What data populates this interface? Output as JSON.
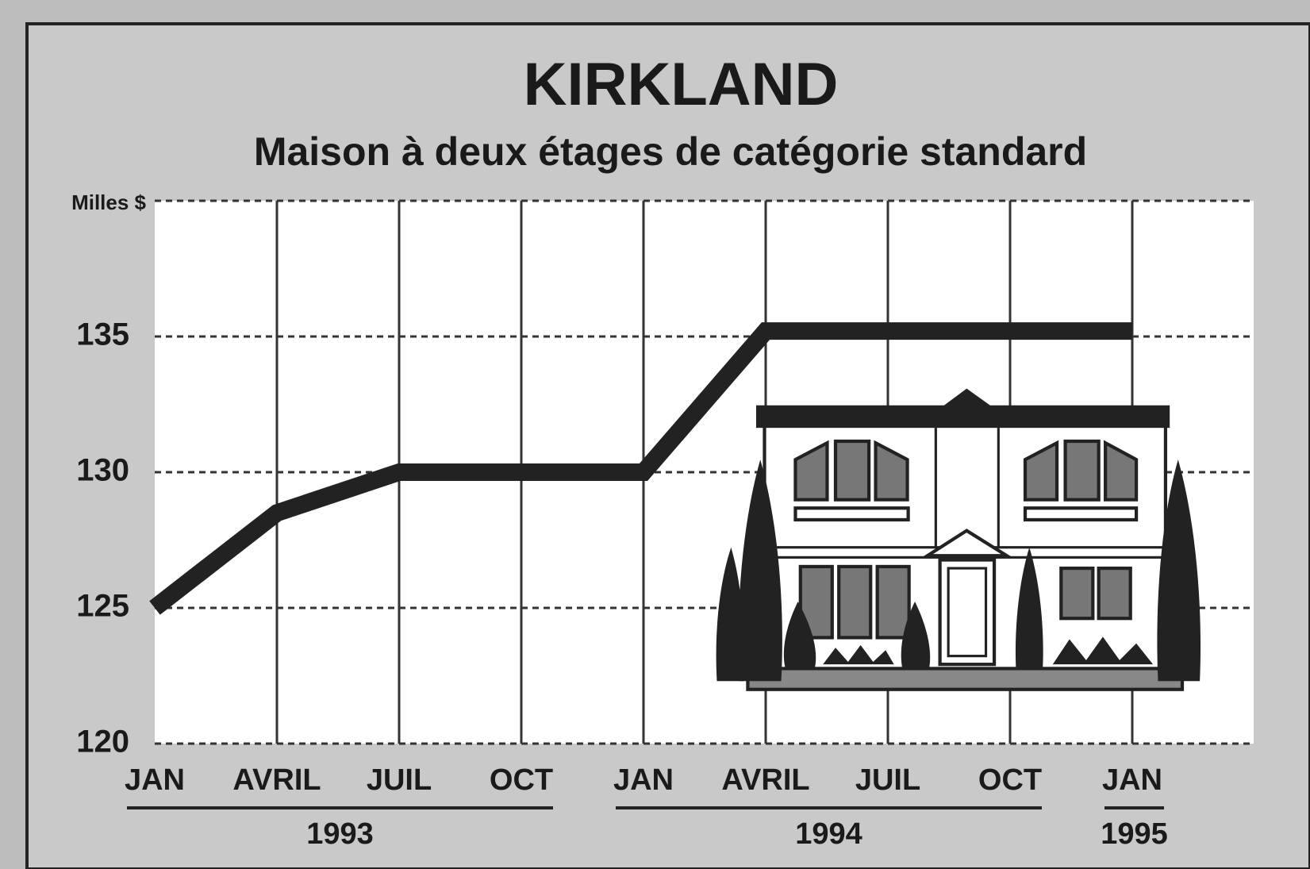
{
  "chart_data": {
    "type": "line",
    "title": "KIRKLAND",
    "subtitle": "Maison à deux étages de catégorie standard",
    "y_label": "Milles $",
    "categories": [
      "JAN",
      "AVRIL",
      "JUIL",
      "OCT",
      "JAN",
      "AVRIL",
      "JUIL",
      "OCT",
      "JAN"
    ],
    "x_groups": [
      {
        "label": "1993",
        "span": 4
      },
      {
        "label": "1994",
        "span": 4
      },
      {
        "label": "1995",
        "span": 1
      }
    ],
    "values": [
      125,
      128.5,
      130,
      130,
      130,
      135.2,
      135.2,
      135.2,
      135.2
    ],
    "color": "#222222",
    "ylim": [
      120,
      140
    ],
    "yticks": [
      120,
      125,
      130,
      135
    ],
    "grid": true
  }
}
